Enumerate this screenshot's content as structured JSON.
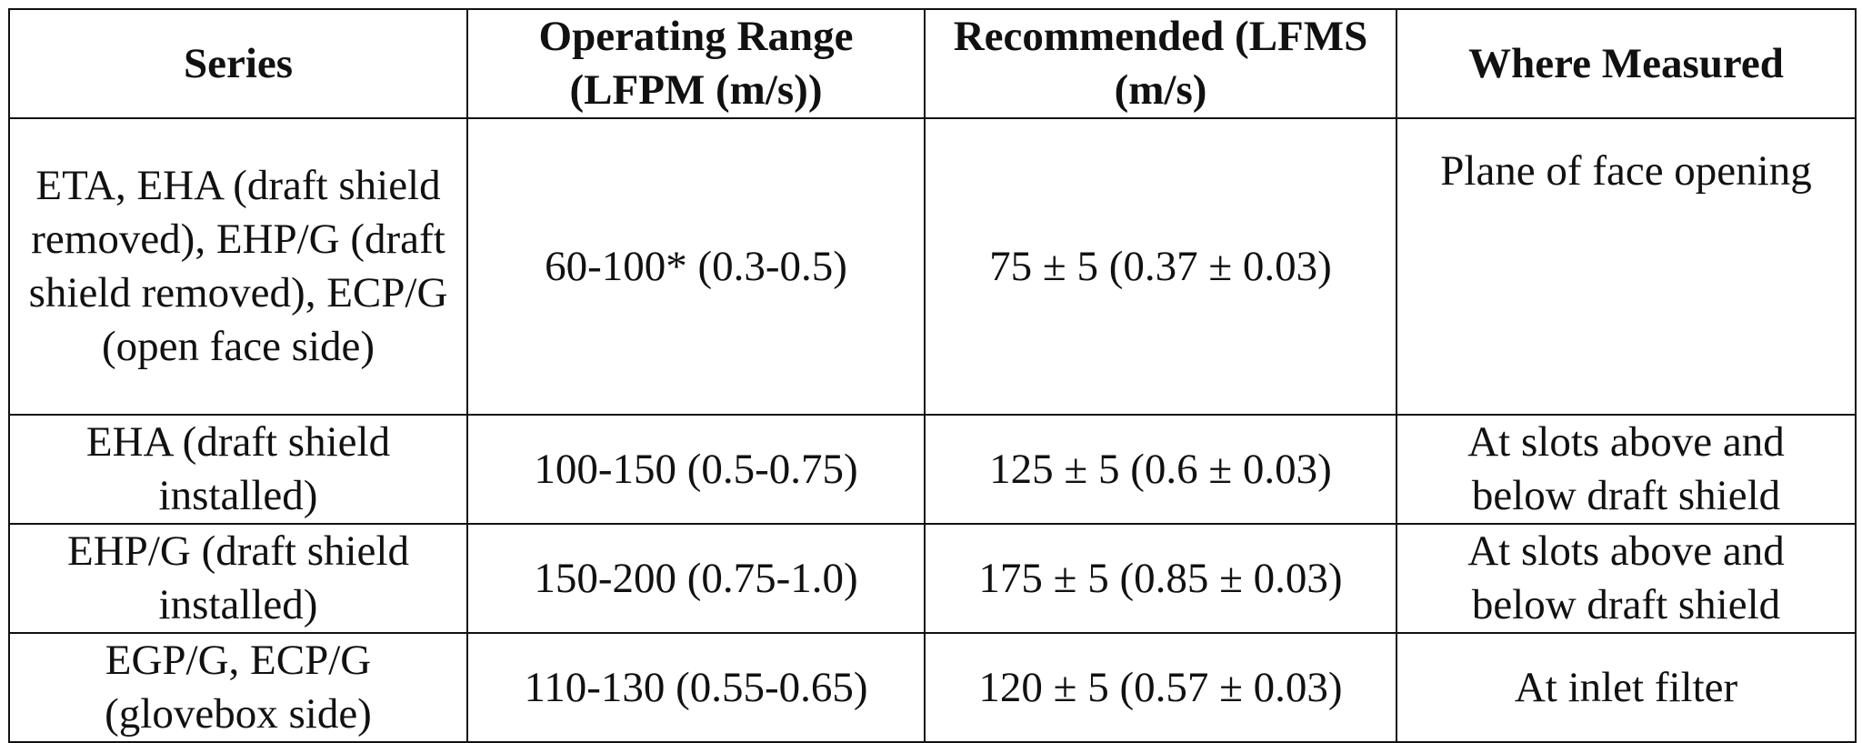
{
  "table": {
    "header": [
      "Series",
      "Operating Range (LFPM (m/s))",
      "Recommended (LFMS (m/s)",
      "Where Measured"
    ],
    "rows": [
      [
        "ETA, EHA (draft shield removed), EHP/G (draft shield removed), ECP/G (open face side)",
        "60-100* (0.3-0.5)",
        "75 ± 5 (0.37 ± 0.03)",
        "Plane of face opening"
      ],
      [
        "EHA (draft shield installed)",
        "100-150 (0.5-0.75)",
        "125 ± 5 (0.6 ± 0.03)",
        "At slots above and below draft shield"
      ],
      [
        "EHP/G (draft shield installed)",
        "150-200 (0.75-1.0)",
        "175 ± 5 (0.85 ± 0.03)",
        "At slots above and below draft shield"
      ],
      [
        "EGP/G, ECP/G (glovebox side)",
        "110-130 (0.55-0.65)",
        "120 ± 5 (0.57 ± 0.03)",
        "At inlet filter"
      ]
    ]
  }
}
